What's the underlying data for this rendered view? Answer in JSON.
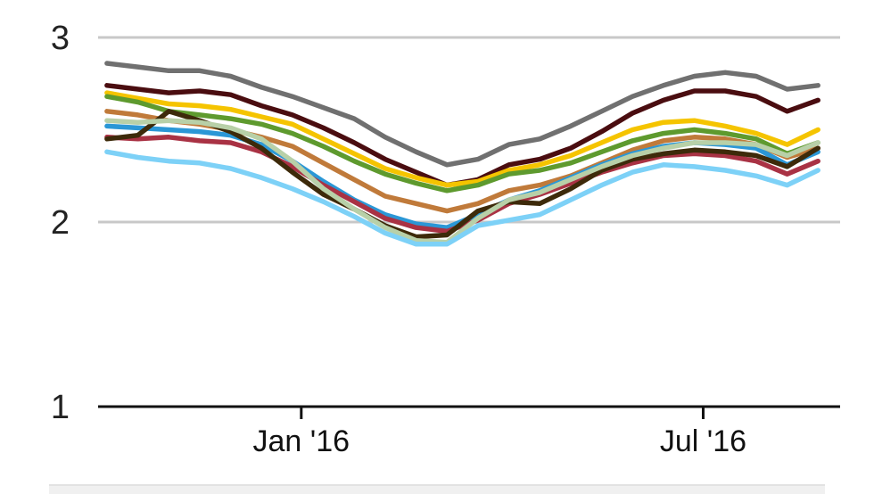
{
  "chart_data": {
    "type": "line",
    "title": "",
    "xlabel": "",
    "ylabel": "",
    "x": [
      "2015-10-05",
      "2015-10-19",
      "2015-11-02",
      "2015-11-16",
      "2015-11-30",
      "2015-12-14",
      "2015-12-28",
      "2016-01-11",
      "2016-01-25",
      "2016-02-08",
      "2016-02-22",
      "2016-03-07",
      "2016-03-21",
      "2016-04-04",
      "2016-04-18",
      "2016-05-02",
      "2016-05-16",
      "2016-05-30",
      "2016-06-13",
      "2016-06-27",
      "2016-07-11",
      "2016-07-25",
      "2016-08-08",
      "2016-08-22"
    ],
    "ylim": [
      1,
      3
    ],
    "y_ticks": [
      {
        "value": 1,
        "label": "1"
      },
      {
        "value": 2,
        "label": "2"
      },
      {
        "value": 3,
        "label": "3"
      }
    ],
    "x_ticks": [
      {
        "date": "2016-01-01",
        "label": "Jan '16"
      },
      {
        "date": "2016-07-01",
        "label": "Jul '16"
      }
    ],
    "grid": true,
    "legend": "none",
    "series": [
      {
        "color": "#707070",
        "values": [
          2.86,
          2.84,
          2.82,
          2.82,
          2.79,
          2.73,
          2.68,
          2.62,
          2.56,
          2.46,
          2.38,
          2.31,
          2.34,
          2.42,
          2.45,
          2.52,
          2.6,
          2.68,
          2.74,
          2.79,
          2.81,
          2.79,
          2.72,
          2.74
        ]
      },
      {
        "color": "#4a0d10",
        "values": [
          2.74,
          2.72,
          2.7,
          2.71,
          2.69,
          2.63,
          2.58,
          2.51,
          2.43,
          2.34,
          2.27,
          2.2,
          2.23,
          2.31,
          2.34,
          2.4,
          2.49,
          2.59,
          2.66,
          2.71,
          2.71,
          2.68,
          2.6,
          2.66
        ]
      },
      {
        "color": "#f5c400",
        "values": [
          2.7,
          2.67,
          2.64,
          2.63,
          2.61,
          2.57,
          2.53,
          2.45,
          2.37,
          2.29,
          2.24,
          2.2,
          2.22,
          2.28,
          2.31,
          2.36,
          2.43,
          2.5,
          2.54,
          2.55,
          2.52,
          2.48,
          2.42,
          2.5
        ]
      },
      {
        "color": "#5e9a2e",
        "values": [
          2.68,
          2.65,
          2.6,
          2.58,
          2.56,
          2.53,
          2.48,
          2.41,
          2.33,
          2.26,
          2.21,
          2.17,
          2.2,
          2.26,
          2.28,
          2.32,
          2.38,
          2.44,
          2.48,
          2.5,
          2.48,
          2.45,
          2.37,
          2.43
        ]
      },
      {
        "color": "#c07a3a",
        "values": [
          2.6,
          2.58,
          2.55,
          2.53,
          2.5,
          2.46,
          2.41,
          2.32,
          2.23,
          2.14,
          2.1,
          2.06,
          2.1,
          2.17,
          2.2,
          2.25,
          2.32,
          2.39,
          2.44,
          2.46,
          2.45,
          2.42,
          2.35,
          2.4
        ]
      },
      {
        "color": "#2b97d6",
        "values": [
          2.52,
          2.51,
          2.5,
          2.49,
          2.47,
          2.42,
          2.33,
          2.22,
          2.12,
          2.04,
          1.99,
          1.97,
          2.04,
          2.12,
          2.17,
          2.24,
          2.31,
          2.37,
          2.41,
          2.43,
          2.42,
          2.4,
          2.31,
          2.38
        ]
      },
      {
        "color": "#a93244",
        "values": [
          2.46,
          2.45,
          2.46,
          2.44,
          2.43,
          2.38,
          2.3,
          2.2,
          2.11,
          2.02,
          1.97,
          1.95,
          2.01,
          2.1,
          2.15,
          2.21,
          2.27,
          2.32,
          2.36,
          2.37,
          2.36,
          2.33,
          2.26,
          2.33
        ]
      },
      {
        "color": "#3d2a0a",
        "values": [
          2.45,
          2.47,
          2.6,
          2.55,
          2.49,
          2.4,
          2.27,
          2.15,
          2.07,
          1.98,
          1.92,
          1.93,
          2.06,
          2.11,
          2.1,
          2.18,
          2.28,
          2.34,
          2.37,
          2.39,
          2.38,
          2.36,
          2.3,
          2.4
        ]
      },
      {
        "color": "#b8d0a8",
        "values": [
          2.55,
          2.54,
          2.55,
          2.54,
          2.51,
          2.45,
          2.33,
          2.18,
          2.07,
          1.97,
          1.9,
          1.89,
          2.02,
          2.12,
          2.16,
          2.23,
          2.3,
          2.36,
          2.4,
          2.43,
          2.43,
          2.42,
          2.36,
          2.43
        ]
      },
      {
        "color": "#7dd1f7",
        "values": [
          2.38,
          2.35,
          2.33,
          2.32,
          2.29,
          2.24,
          2.18,
          2.11,
          2.03,
          1.94,
          1.88,
          1.88,
          1.98,
          2.01,
          2.04,
          2.12,
          2.2,
          2.27,
          2.31,
          2.3,
          2.28,
          2.25,
          2.2,
          2.28
        ]
      }
    ]
  }
}
